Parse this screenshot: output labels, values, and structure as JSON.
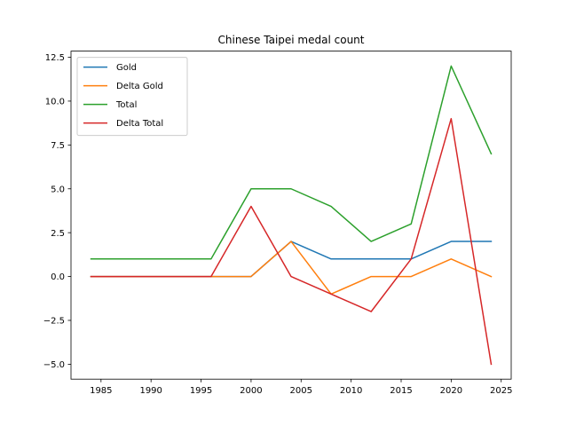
{
  "chart_data": {
    "type": "line",
    "title": "Chinese Taipei medal count",
    "xlabel": "",
    "ylabel": "",
    "x": [
      1984,
      1988,
      1992,
      1996,
      2000,
      2004,
      2008,
      2012,
      2016,
      2020,
      2024
    ],
    "xlim": [
      1982.0,
      2026.0
    ],
    "ylim": [
      -5.85,
      12.85
    ],
    "xticks": [
      1985,
      1990,
      1995,
      2000,
      2005,
      2010,
      2015,
      2020,
      2025
    ],
    "yticks": [
      -5.0,
      -2.5,
      0.0,
      2.5,
      5.0,
      7.5,
      10.0,
      12.5
    ],
    "xtick_labels": [
      "1985",
      "1990",
      "1995",
      "2000",
      "2005",
      "2010",
      "2015",
      "2020",
      "2025"
    ],
    "ytick_labels": [
      "−5.0",
      "−2.5",
      "0.0",
      "2.5",
      "5.0",
      "7.5",
      "10.0",
      "12.5"
    ],
    "grid": false,
    "legend_position": "top-left",
    "series": [
      {
        "name": "Gold",
        "color": "#1f77b4",
        "values": [
          0,
          0,
          0,
          0,
          0,
          2,
          1,
          1,
          1,
          2,
          2
        ]
      },
      {
        "name": "Delta Gold",
        "color": "#ff7f0e",
        "values": [
          0,
          0,
          0,
          0,
          0,
          2,
          -1,
          0,
          0,
          1,
          0
        ]
      },
      {
        "name": "Total",
        "color": "#2ca02c",
        "values": [
          1,
          1,
          1,
          1,
          5,
          5,
          4,
          2,
          3,
          12,
          7
        ]
      },
      {
        "name": "Delta Total",
        "color": "#d62728",
        "values": [
          0,
          0,
          0,
          0,
          4,
          0,
          -1,
          -2,
          1,
          9,
          -5
        ]
      }
    ]
  }
}
